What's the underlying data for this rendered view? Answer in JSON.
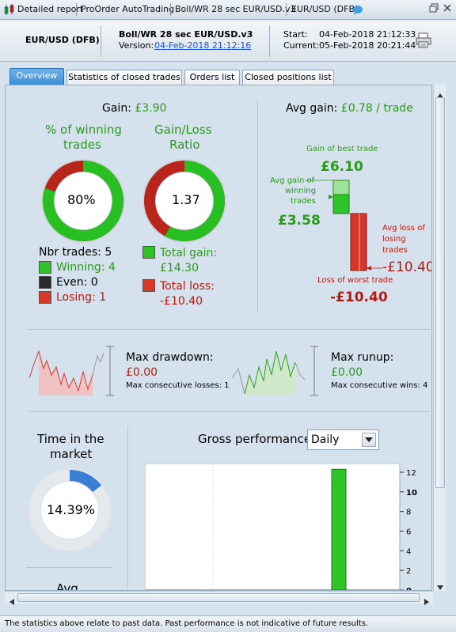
{
  "titlebar": {
    "tabs": [
      "Detailed report",
      "ProOrder AutoTrading",
      "Boll/WR 28 sec EUR/USD.v3",
      "EUR/USD (DFB)"
    ],
    "buttons": [
      "restore-icon",
      "close-icon"
    ]
  },
  "header": {
    "instrument": "EUR/USD (DFB)",
    "system_name": "Boll/WR 28 sec EUR/USD.v3",
    "version_label": "Version:",
    "version_value": "04-Feb-2018 21:12:16",
    "start_label": "Start:",
    "start_value": "04-Feb-2018 21:12:33",
    "current_label": "Current:",
    "current_value": "05-Feb-2018 20:21:44"
  },
  "tabs": [
    "Overview",
    "Statistics of closed trades",
    "Orders list",
    "Closed positions list"
  ],
  "overview": {
    "gain_label": "Gain:",
    "gain_value": "£3.90",
    "winning_title_1": "% of winning",
    "winning_title_2": "trades",
    "winning_pct": "80%",
    "winning_fraction": 0.8,
    "gl_title_1": "Gain/Loss",
    "gl_title_2": "Ratio",
    "gl_ratio": "1.37",
    "gl_fraction": 0.58,
    "nbr_trades": "Nbr trades: 5",
    "winning": "Winning: 4",
    "even": "Even: 0",
    "losing": "Losing: 1",
    "total_gain_label": "Total gain:",
    "total_gain": "£14.30",
    "total_loss_label": "Total loss:",
    "total_loss": "-£10.40",
    "avg_gain_label": "Avg gain:",
    "avg_gain_value": "£0.78 / trade",
    "best_trade_label": "Gain of best trade",
    "best_trade_value": "£6.10",
    "avg_win_label_1": "Avg gain of",
    "avg_win_label_2": "winning",
    "avg_win_label_3": "trades",
    "avg_win_value": "£3.58",
    "avg_loss_label_1": "Avg loss of",
    "avg_loss_label_2": "losing",
    "avg_loss_label_3": "trades",
    "avg_loss_value": "-£10.40",
    "worst_trade_label": "Loss of worst trade",
    "worst_trade_value": "-£10.40",
    "max_drawdown_label": "Max drawdown:",
    "max_drawdown_value": "£0.00",
    "max_consec_losses": "Max consecutive losses: 1",
    "max_runup_label": "Max runup:",
    "max_runup_value": "£0.00",
    "max_consec_wins": "Max consecutive wins: 4",
    "time_market_1": "Time in the",
    "time_market_2": "market",
    "time_market_pct": "14.39%",
    "time_market_fraction": 0.1439,
    "avg_label": "Avg",
    "gross_perf_label": "Gross performance",
    "period_select": "Daily"
  },
  "chart_data": {
    "type": "bar",
    "categories": [
      "",
      ""
    ],
    "values": [
      -0.3,
      12.3
    ],
    "ylim": [
      0,
      13
    ],
    "yticks": [
      "12",
      "10",
      "8",
      "6",
      "4",
      "2",
      "0"
    ]
  },
  "statusbar": {
    "text": "The statistics above relate to past data. Past performance is not indicative of future results."
  },
  "colors": {
    "green": "#2a9a1a",
    "red": "#b81a12",
    "accent_tab": "#3d8fd6",
    "time_bar": "#3a7fd6"
  }
}
